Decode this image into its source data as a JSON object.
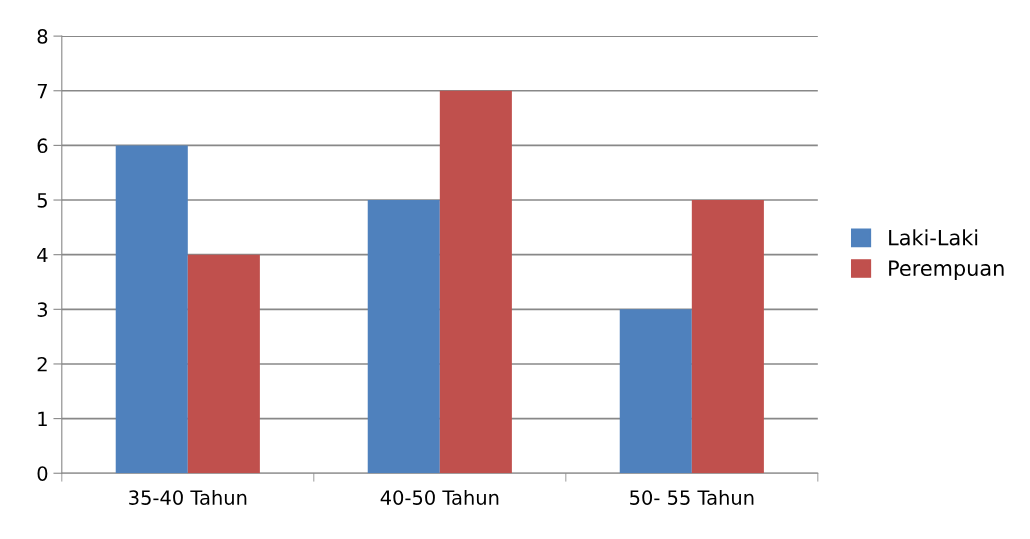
{
  "chart_data": {
    "type": "bar",
    "categories": [
      "35-40 Tahun",
      "40-50 Tahun",
      "50- 55 Tahun"
    ],
    "series": [
      {
        "name": "Laki-Laki",
        "color": "#4f81bd",
        "values": [
          6,
          5,
          3
        ]
      },
      {
        "name": "Perempuan",
        "color": "#c0504d",
        "values": [
          4,
          7,
          5
        ]
      }
    ],
    "ylim": [
      0,
      8
    ],
    "yticks": [
      0,
      1,
      2,
      3,
      4,
      5,
      6,
      7,
      8
    ],
    "grid": "y",
    "legend": "right"
  }
}
